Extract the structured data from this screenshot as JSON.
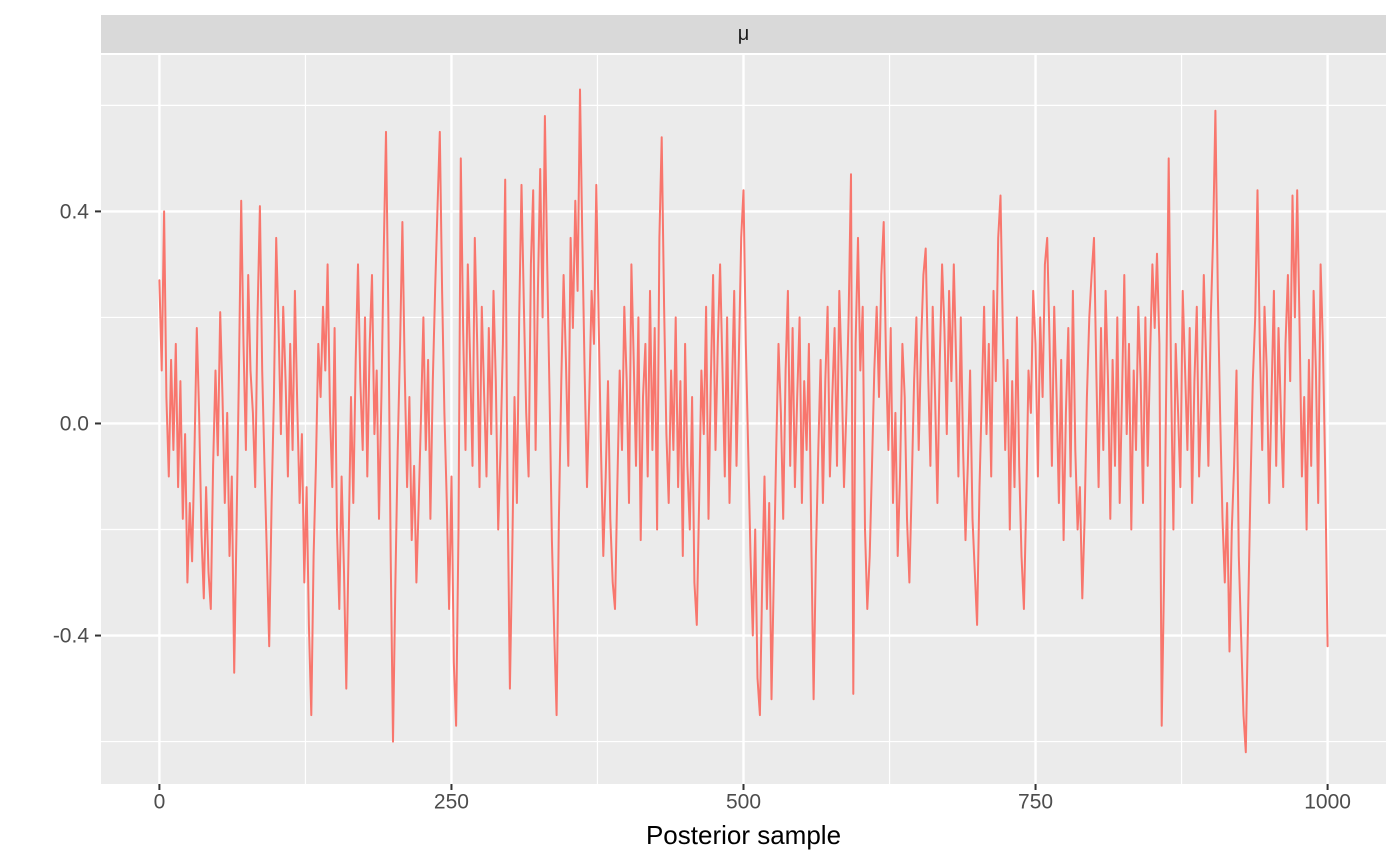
{
  "strip": {
    "label": "μ"
  },
  "x_axis": {
    "title": "Posterior sample",
    "tick_values": [
      0,
      250,
      500,
      750,
      1000
    ],
    "tick_labels": [
      "0",
      "250",
      "500",
      "750",
      "1000"
    ],
    "minor_values": [
      125,
      375,
      625,
      875
    ],
    "domain": [
      -50,
      1050
    ]
  },
  "y_axis": {
    "tick_values": [
      -0.4,
      0.0,
      0.4
    ],
    "tick_labels": [
      "-0.4",
      "0.0",
      "0.4"
    ],
    "minor_values": [
      -0.6,
      -0.2,
      0.2,
      0.6
    ],
    "domain": [
      -0.68,
      0.695
    ]
  },
  "colors": {
    "line": "#F8766D",
    "panel_bg": "#EBEBEB",
    "strip_bg": "#D9D9D9",
    "grid": "#FFFFFF",
    "tick_text": "#4D4D4D",
    "axis_title_text": "#000000",
    "strip_text": "#1A1A1A",
    "tick_mark": "#333333",
    "page_bg": "#FFFFFF"
  },
  "chart_data": {
    "type": "line",
    "title": "μ",
    "xlabel": "Posterior sample",
    "ylabel": "",
    "legend": "none",
    "grid": "major+minor-white-on-grey",
    "xlim": [
      -50,
      1050
    ],
    "ylim": [
      -0.68,
      0.695
    ],
    "x_ticks": [
      0,
      250,
      500,
      750,
      1000
    ],
    "y_ticks": [
      -0.4,
      0.0,
      0.4
    ],
    "series": [
      {
        "name": "μ",
        "x_start": 0,
        "x_step": 2,
        "values": [
          0.27,
          0.1,
          0.4,
          0.05,
          -0.1,
          0.12,
          -0.05,
          0.15,
          -0.12,
          0.08,
          -0.18,
          -0.02,
          -0.3,
          -0.15,
          -0.26,
          -0.05,
          0.18,
          0.02,
          -0.21,
          -0.33,
          -0.12,
          -0.28,
          -0.35,
          -0.08,
          0.1,
          -0.06,
          0.21,
          0.05,
          -0.15,
          0.02,
          -0.25,
          -0.1,
          -0.47,
          -0.2,
          0.08,
          0.42,
          0.15,
          -0.05,
          0.28,
          0.1,
          0.02,
          -0.12,
          0.2,
          0.41,
          0.1,
          -0.08,
          -0.25,
          -0.42,
          -0.15,
          0.05,
          0.35,
          0.18,
          -0.02,
          0.22,
          0.08,
          -0.1,
          0.15,
          -0.05,
          0.25,
          0.03,
          -0.15,
          -0.02,
          -0.3,
          -0.12,
          -0.38,
          -0.55,
          -0.25,
          -0.08,
          0.15,
          0.05,
          0.22,
          0.1,
          0.3,
          0.02,
          -0.12,
          0.18,
          -0.2,
          -0.35,
          -0.1,
          -0.28,
          -0.5,
          -0.22,
          0.05,
          -0.15,
          0.12,
          0.3,
          0.08,
          -0.05,
          0.2,
          -0.1,
          0.15,
          0.28,
          -0.02,
          0.1,
          -0.18,
          0.05,
          0.32,
          0.55,
          0.2,
          -0.25,
          -0.6,
          -0.3,
          -0.05,
          0.15,
          0.38,
          0.1,
          -0.12,
          0.05,
          -0.22,
          -0.08,
          -0.3,
          -0.15,
          0.02,
          0.2,
          -0.05,
          0.12,
          -0.18,
          0.08,
          0.25,
          0.4,
          0.55,
          0.25,
          0.02,
          -0.15,
          -0.35,
          -0.1,
          -0.45,
          -0.57,
          -0.2,
          0.5,
          0.18,
          -0.05,
          0.3,
          0.12,
          -0.08,
          0.35,
          0.15,
          -0.12,
          0.22,
          0.05,
          -0.1,
          0.18,
          -0.02,
          0.25,
          0.08,
          -0.2,
          -0.05,
          0.15,
          0.46,
          -0.12,
          -0.5,
          -0.25,
          0.05,
          -0.15,
          0.2,
          0.45,
          0.22,
          0.02,
          -0.1,
          0.3,
          0.44,
          -0.05,
          0.25,
          0.48,
          0.2,
          0.58,
          0.3,
          0.05,
          -0.22,
          -0.4,
          -0.55,
          -0.18,
          0.08,
          0.28,
          0.12,
          -0.08,
          0.35,
          0.18,
          0.42,
          0.25,
          0.63,
          0.35,
          0.1,
          -0.12,
          0.05,
          0.25,
          0.15,
          0.45,
          0.2,
          -0.05,
          -0.25,
          -0.1,
          0.08,
          -0.18,
          -0.3,
          -0.35,
          -0.12,
          0.1,
          -0.05,
          0.22,
          0.08,
          -0.15,
          0.3,
          0.12,
          -0.08,
          0.2,
          -0.22,
          0.05,
          0.15,
          -0.1,
          0.25,
          -0.05,
          0.18,
          -0.2,
          0.35,
          0.54,
          0.22,
          -0.02,
          -0.15,
          0.1,
          -0.05,
          0.2,
          -0.12,
          0.08,
          -0.25,
          0.15,
          -0.08,
          -0.2,
          0.05,
          -0.3,
          -0.38,
          -0.15,
          0.1,
          -0.02,
          0.22,
          -0.18,
          0.08,
          0.28,
          -0.05,
          0.15,
          0.3,
          0.1,
          -0.1,
          0.2,
          -0.15,
          0.05,
          0.25,
          -0.08,
          0.12,
          0.35,
          0.44,
          0.15,
          -0.05,
          -0.25,
          -0.4,
          -0.2,
          -0.48,
          -0.55,
          -0.3,
          -0.1,
          -0.35,
          -0.15,
          -0.52,
          -0.28,
          -0.05,
          0.15,
          0.02,
          -0.18,
          0.1,
          0.25,
          -0.08,
          0.18,
          -0.12,
          0.05,
          0.2,
          -0.15,
          0.08,
          -0.05,
          0.15,
          -0.22,
          -0.52,
          -0.25,
          -0.05,
          0.12,
          -0.15,
          0.08,
          0.22,
          -0.1,
          0.05,
          0.18,
          -0.08,
          0.25,
          0.1,
          -0.12,
          0.02,
          0.2,
          0.47,
          -0.51,
          0.15,
          0.35,
          0.1,
          0.22,
          -0.2,
          -0.35,
          -0.25,
          -0.08,
          0.1,
          0.22,
          0.05,
          0.28,
          0.38,
          0.12,
          -0.05,
          0.18,
          -0.15,
          0.02,
          -0.25,
          -0.1,
          0.15,
          0.05,
          -0.18,
          -0.3,
          -0.12,
          0.08,
          0.2,
          -0.05,
          0.15,
          0.28,
          0.33,
          0.1,
          -0.08,
          0.22,
          0.05,
          -0.15,
          0.12,
          0.3,
          0.18,
          -0.02,
          0.25,
          0.08,
          0.3,
          0.12,
          -0.1,
          0.2,
          -0.05,
          -0.22,
          -0.08,
          0.1,
          -0.18,
          -0.28,
          -0.38,
          -0.12,
          0.05,
          0.22,
          -0.02,
          0.15,
          -0.1,
          0.25,
          0.08,
          0.35,
          0.43,
          0.18,
          -0.05,
          0.12,
          -0.2,
          0.08,
          -0.12,
          0.2,
          -0.08,
          -0.25,
          -0.35,
          -0.15,
          0.1,
          0.02,
          0.25,
          0.15,
          -0.1,
          0.2,
          0.05,
          0.3,
          0.35,
          0.15,
          -0.08,
          0.22,
          0.05,
          -0.15,
          0.12,
          -0.22,
          0.02,
          0.18,
          -0.1,
          0.25,
          -0.05,
          -0.2,
          -0.12,
          -0.33,
          -0.18,
          0.05,
          0.2,
          0.28,
          0.35,
          0.1,
          -0.12,
          0.18,
          -0.05,
          0.25,
          0.08,
          -0.18,
          0.12,
          -0.08,
          0.2,
          -0.15,
          0.05,
          0.28,
          -0.02,
          0.15,
          -0.2,
          0.1,
          -0.05,
          0.22,
          0.08,
          -0.15,
          0.2,
          -0.08,
          0.12,
          0.3,
          0.18,
          0.32,
          0.15,
          -0.57,
          -0.3,
          0.1,
          0.5,
          0.08,
          -0.2,
          0.15,
          0.02,
          -0.12,
          0.25,
          0.1,
          -0.05,
          0.18,
          -0.15,
          0.08,
          0.22,
          -0.1,
          0.05,
          0.28,
          0.12,
          -0.08,
          0.2,
          0.35,
          0.59,
          0.25,
          0.02,
          -0.18,
          -0.3,
          -0.15,
          -0.43,
          -0.2,
          -0.08,
          0.1,
          -0.25,
          -0.4,
          -0.55,
          -0.62,
          -0.35,
          -0.12,
          0.08,
          0.2,
          0.44,
          0.15,
          -0.05,
          0.22,
          0.1,
          -0.15,
          0.05,
          0.25,
          -0.08,
          0.18,
          0.02,
          -0.12,
          0.15,
          0.28,
          0.08,
          0.43,
          0.2,
          0.44,
          0.18,
          -0.1,
          0.05,
          -0.2,
          0.12,
          -0.08,
          0.25,
          0.1,
          -0.15,
          0.3,
          0.15,
          -0.1,
          -0.42
        ]
      }
    ]
  }
}
